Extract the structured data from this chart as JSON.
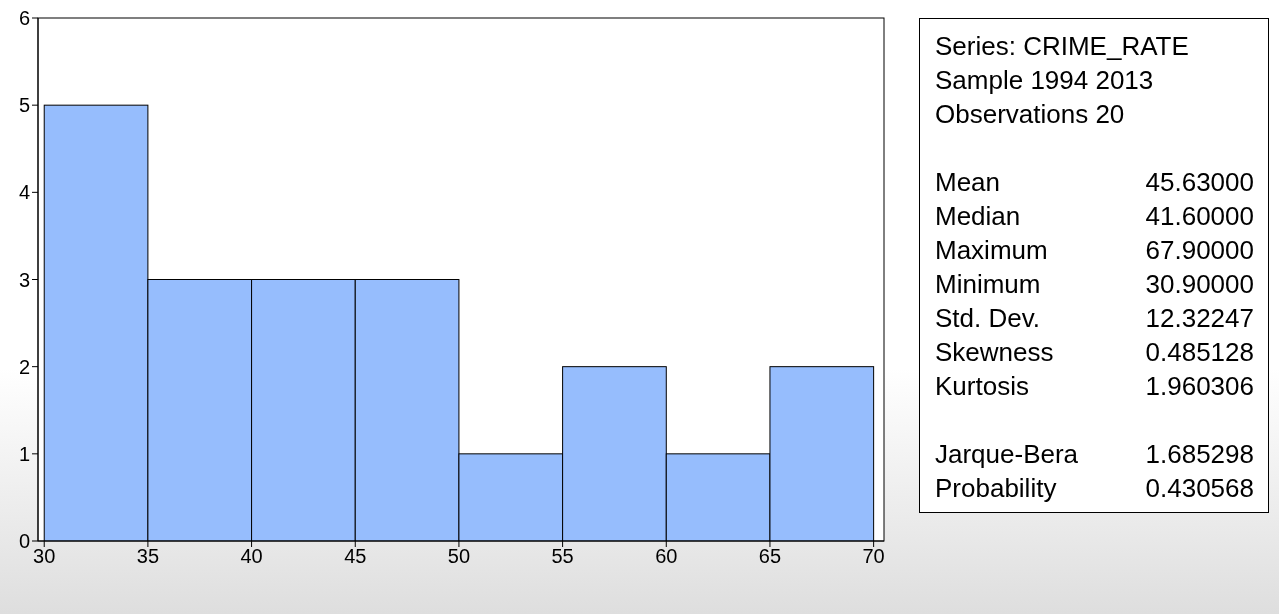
{
  "chart_data": {
    "type": "histogram",
    "bins": [
      30,
      35,
      40,
      45,
      50,
      55,
      60,
      65,
      70
    ],
    "values": [
      5,
      3,
      3,
      3,
      1,
      2,
      1,
      2
    ],
    "color": "#96bdfd",
    "xlim": [
      29.7,
      70.5
    ],
    "xticks": [
      30,
      35,
      40,
      45,
      50,
      55,
      60,
      65,
      70
    ],
    "ylim": [
      0,
      6
    ],
    "yticks": [
      0,
      1,
      2,
      3,
      4,
      5,
      6
    ],
    "grid": false,
    "annotations": [
      "Series: CRIME_RATE",
      "Sample 1994 2013",
      "Observations 20",
      "Mean",
      "45.63000",
      "Median",
      "41.60000",
      "Maximum",
      "67.90000",
      "Minimum",
      "30.90000",
      "Std. Dev.",
      "12.32247",
      "Skewness",
      "0.485128",
      "Kurtosis",
      "1.960306",
      "Jarque-Bera",
      "1.685298",
      "Probability",
      "0.430568"
    ]
  }
}
